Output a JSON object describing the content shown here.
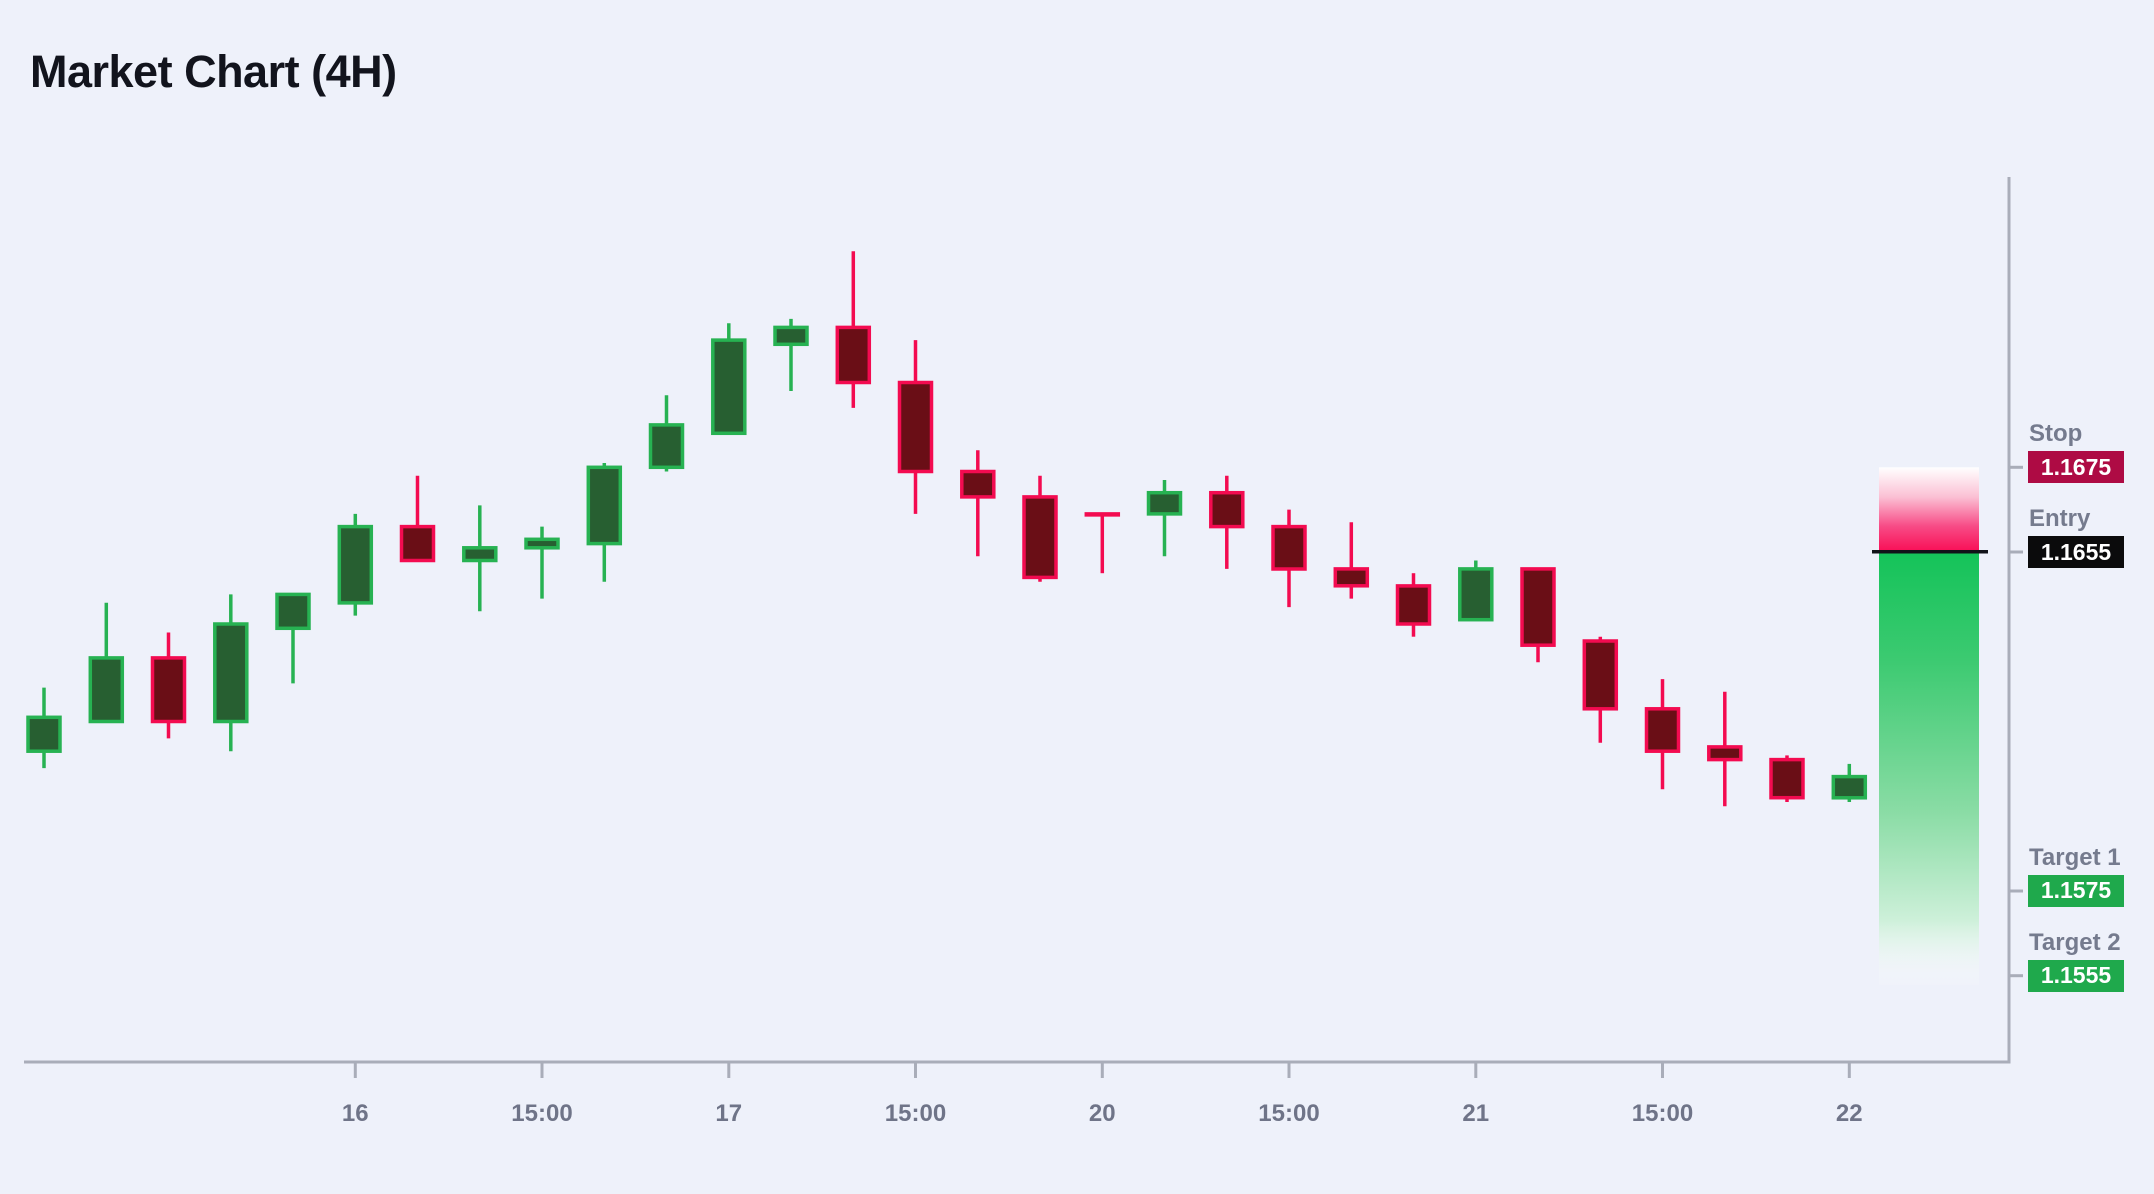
{
  "page": {
    "title": "Market Chart (4H)"
  },
  "chart_data": {
    "type": "candlestick",
    "title": "Market Chart (4H)",
    "timeframe": "4H",
    "x_axis": {
      "tick_labels": [
        "16",
        "15:00",
        "17",
        "15:00",
        "20",
        "15:00",
        "21",
        "15:00",
        "22"
      ],
      "tick_candle_indices": [
        5,
        8,
        11,
        14,
        17,
        20,
        23,
        26,
        29
      ]
    },
    "y_range_hint": [
      1.1555,
      1.1726
    ],
    "candles": [
      {
        "o": 1.1608,
        "h": 1.1623,
        "l": 1.1604,
        "c": 1.1616
      },
      {
        "o": 1.1615,
        "h": 1.1643,
        "l": 1.1615,
        "c": 1.163
      },
      {
        "o": 1.163,
        "h": 1.1636,
        "l": 1.1611,
        "c": 1.1615
      },
      {
        "o": 1.1615,
        "h": 1.1645,
        "l": 1.1608,
        "c": 1.1638
      },
      {
        "o": 1.1637,
        "h": 1.1645,
        "l": 1.1624,
        "c": 1.1645
      },
      {
        "o": 1.1643,
        "h": 1.1664,
        "l": 1.164,
        "c": 1.1661
      },
      {
        "o": 1.1661,
        "h": 1.1673,
        "l": 1.1653,
        "c": 1.1653
      },
      {
        "o": 1.1653,
        "h": 1.1666,
        "l": 1.1641,
        "c": 1.1656
      },
      {
        "o": 1.1656,
        "h": 1.1661,
        "l": 1.1644,
        "c": 1.1658
      },
      {
        "o": 1.1657,
        "h": 1.1676,
        "l": 1.1648,
        "c": 1.1675
      },
      {
        "o": 1.1675,
        "h": 1.1692,
        "l": 1.1674,
        "c": 1.1685
      },
      {
        "o": 1.1683,
        "h": 1.1709,
        "l": 1.1683,
        "c": 1.1705
      },
      {
        "o": 1.1704,
        "h": 1.171,
        "l": 1.1693,
        "c": 1.1708
      },
      {
        "o": 1.1708,
        "h": 1.1726,
        "l": 1.1689,
        "c": 1.1695
      },
      {
        "o": 1.1695,
        "h": 1.1705,
        "l": 1.1664,
        "c": 1.1674
      },
      {
        "o": 1.1674,
        "h": 1.1679,
        "l": 1.1654,
        "c": 1.1668
      },
      {
        "o": 1.1668,
        "h": 1.1673,
        "l": 1.1648,
        "c": 1.1649
      },
      {
        "o": 1.1664,
        "h": 1.1664,
        "l": 1.165,
        "c": 1.1664
      },
      {
        "o": 1.1664,
        "h": 1.1672,
        "l": 1.1654,
        "c": 1.1669
      },
      {
        "o": 1.1669,
        "h": 1.1673,
        "l": 1.1651,
        "c": 1.1661
      },
      {
        "o": 1.1661,
        "h": 1.1665,
        "l": 1.1642,
        "c": 1.1651
      },
      {
        "o": 1.1651,
        "h": 1.1662,
        "l": 1.1644,
        "c": 1.1647
      },
      {
        "o": 1.1647,
        "h": 1.165,
        "l": 1.1635,
        "c": 1.1638
      },
      {
        "o": 1.1639,
        "h": 1.1653,
        "l": 1.1639,
        "c": 1.1651
      },
      {
        "o": 1.1651,
        "h": 1.1651,
        "l": 1.1629,
        "c": 1.1633
      },
      {
        "o": 1.1634,
        "h": 1.1635,
        "l": 1.161,
        "c": 1.1618
      },
      {
        "o": 1.1618,
        "h": 1.1625,
        "l": 1.1599,
        "c": 1.1608
      },
      {
        "o": 1.1609,
        "h": 1.1622,
        "l": 1.1595,
        "c": 1.1606
      },
      {
        "o": 1.1606,
        "h": 1.1607,
        "l": 1.1596,
        "c": 1.1597
      },
      {
        "o": 1.1597,
        "h": 1.1605,
        "l": 1.1596,
        "c": 1.1602
      }
    ],
    "levels": {
      "stop": {
        "label": "Stop",
        "value": "1.1675",
        "price": 1.1675,
        "badge_color": "#ae0b44"
      },
      "entry": {
        "label": "Entry",
        "value": "1.1655",
        "price": 1.1655,
        "badge_color": "#0b0b0c"
      },
      "target1": {
        "label": "Target 1",
        "value": "1.1575",
        "price": 1.1575,
        "badge_color": "#1fa94c"
      },
      "target2": {
        "label": "Target 2",
        "value": "1.1555",
        "price": 1.1555,
        "badge_color": "#1fa94c"
      }
    },
    "zone": {
      "risk_color": "#f90d55",
      "reward_color": "#14c359",
      "from_price": 1.1675,
      "entry_price": 1.1655,
      "to_price": 1.1553
    },
    "colors": {
      "bull_fill": "#275f31",
      "bull_border": "#27b252",
      "bear_fill": "#6a0e16",
      "bear_border": "#f30b50",
      "background": "#eef1fa",
      "axis": "#a9adb9",
      "tick_label": "#6f7488",
      "level_label": "#757b8e",
      "entry_line": "#111319"
    }
  }
}
